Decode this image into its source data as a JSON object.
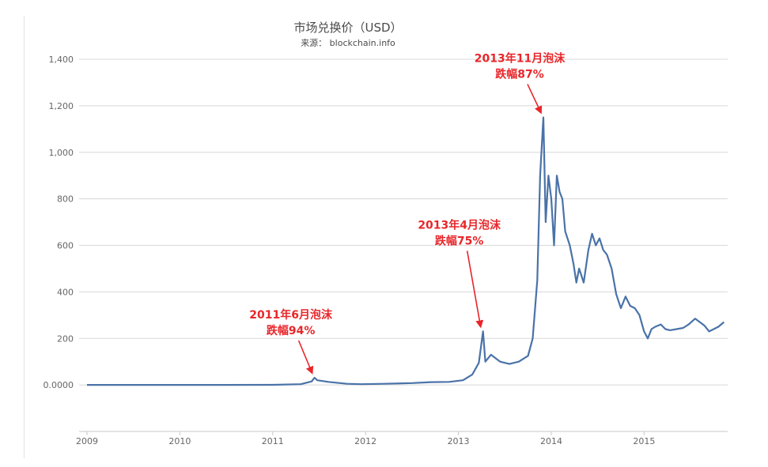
{
  "chart_data": {
    "type": "line",
    "title": "市场兑换价（USD）",
    "subtitle": "来源： blockchain.info",
    "xlabel": "",
    "ylabel": "",
    "x_ticks": [
      "2009",
      "2010",
      "2011",
      "2012",
      "2013",
      "2014",
      "2015"
    ],
    "y_ticks": [
      {
        "value": 0,
        "label": "0.0000"
      },
      {
        "value": 200,
        "label": "200"
      },
      {
        "value": 400,
        "label": "400"
      },
      {
        "value": 600,
        "label": "600"
      },
      {
        "value": 800,
        "label": "800"
      },
      {
        "value": 1000,
        "label": "1,000"
      },
      {
        "value": 1200,
        "label": "1,200"
      },
      {
        "value": 1400,
        "label": "1,400"
      }
    ],
    "ylim": [
      -200,
      1400
    ],
    "xlim": [
      2009.0,
      2015.9
    ],
    "grid": true,
    "series": [
      {
        "name": "",
        "color": "#4a72a8",
        "points": [
          [
            2009.0,
            0
          ],
          [
            2010.5,
            0.1
          ],
          [
            2011.0,
            0.5
          ],
          [
            2011.3,
            3
          ],
          [
            2011.42,
            15
          ],
          [
            2011.45,
            31
          ],
          [
            2011.48,
            20
          ],
          [
            2011.6,
            13
          ],
          [
            2011.8,
            5
          ],
          [
            2011.95,
            3
          ],
          [
            2012.2,
            5
          ],
          [
            2012.5,
            8
          ],
          [
            2012.7,
            12
          ],
          [
            2012.9,
            13
          ],
          [
            2013.05,
            20
          ],
          [
            2013.15,
            45
          ],
          [
            2013.22,
            95
          ],
          [
            2013.265,
            230
          ],
          [
            2013.29,
            100
          ],
          [
            2013.35,
            130
          ],
          [
            2013.45,
            100
          ],
          [
            2013.55,
            90
          ],
          [
            2013.65,
            100
          ],
          [
            2013.75,
            125
          ],
          [
            2013.8,
            200
          ],
          [
            2013.85,
            450
          ],
          [
            2013.88,
            900
          ],
          [
            2013.915,
            1150
          ],
          [
            2013.94,
            700
          ],
          [
            2013.97,
            900
          ],
          [
            2014.0,
            800
          ],
          [
            2014.03,
            600
          ],
          [
            2014.06,
            900
          ],
          [
            2014.09,
            830
          ],
          [
            2014.12,
            800
          ],
          [
            2014.15,
            660
          ],
          [
            2014.2,
            600
          ],
          [
            2014.24,
            520
          ],
          [
            2014.27,
            440
          ],
          [
            2014.3,
            500
          ],
          [
            2014.35,
            440
          ],
          [
            2014.4,
            580
          ],
          [
            2014.44,
            650
          ],
          [
            2014.48,
            600
          ],
          [
            2014.52,
            630
          ],
          [
            2014.56,
            580
          ],
          [
            2014.6,
            560
          ],
          [
            2014.65,
            500
          ],
          [
            2014.7,
            390
          ],
          [
            2014.75,
            330
          ],
          [
            2014.8,
            380
          ],
          [
            2014.85,
            340
          ],
          [
            2014.9,
            330
          ],
          [
            2014.95,
            300
          ],
          [
            2015.0,
            230
          ],
          [
            2015.04,
            200
          ],
          [
            2015.08,
            240
          ],
          [
            2015.12,
            250
          ],
          [
            2015.18,
            260
          ],
          [
            2015.23,
            240
          ],
          [
            2015.28,
            235
          ],
          [
            2015.35,
            240
          ],
          [
            2015.42,
            245
          ],
          [
            2015.48,
            260
          ],
          [
            2015.55,
            285
          ],
          [
            2015.6,
            270
          ],
          [
            2015.65,
            255
          ],
          [
            2015.7,
            230
          ],
          [
            2015.75,
            240
          ],
          [
            2015.8,
            250
          ],
          [
            2015.86,
            270
          ]
        ]
      }
    ],
    "annotations": [
      {
        "line1": "2011年6月泡沫",
        "line2": "跌幅94%",
        "target": [
          2011.45,
          31
        ]
      },
      {
        "line1": "2013年4月泡沫",
        "line2": "跌幅75%",
        "target": [
          2013.265,
          230
        ]
      },
      {
        "line1": "2013年11月泡沫",
        "line2": "跌幅87%",
        "target": [
          2013.915,
          1150
        ]
      }
    ],
    "colors": {
      "line": "#4a72a8",
      "annotation": "#e8262a",
      "grid": "#d8d8d8"
    }
  }
}
